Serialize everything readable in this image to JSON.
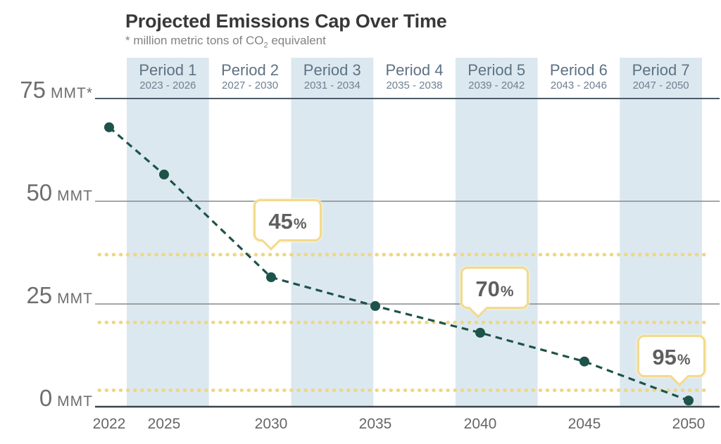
{
  "title": "Projected Emissions Cap Over Time",
  "subtitle": {
    "prefix": "* million metric tons of CO",
    "sub": "2",
    "suffix": " equivalent"
  },
  "colors": {
    "background": "#ffffff",
    "band": "#dce8ef",
    "grid": "#85898c",
    "axis_top": "#4d5c68",
    "axis_bottom": "#39434b",
    "line": "#1d5349",
    "target_dots": "#efd685",
    "callout_border": "#f3da8c",
    "callout_text": "#5f5f5f",
    "title_text": "#383838",
    "subtitle_text": "#828282",
    "period_text": "#5d7284",
    "axis_label_text": "#6e6e6e"
  },
  "chart_data": {
    "type": "line",
    "title": "Projected Emissions Cap Over Time",
    "subtitle": "* million metric tons of CO2 equivalent",
    "unit": "MMT CO2 equivalent",
    "x": [
      2022,
      2025,
      2030,
      2035,
      2040,
      2045,
      2050
    ],
    "values": [
      68,
      56.5,
      31.5,
      24.5,
      18,
      11,
      1.5
    ],
    "series_name": "Projected emissions cap",
    "line_style": "dashed",
    "marker": "circle",
    "ylim": [
      0,
      75
    ],
    "grid": "horizontal",
    "legend": "none",
    "y_ticks": [
      {
        "value": 75,
        "label": "75",
        "unit": "MMT*"
      },
      {
        "value": 50,
        "label": "50",
        "unit": "MMT"
      },
      {
        "value": 25,
        "label": "25",
        "unit": "MMT"
      },
      {
        "value": 0,
        "label": "0",
        "unit": "MMT"
      }
    ],
    "x_ticks": [
      "2022",
      "2025",
      "2030",
      "2035",
      "2040",
      "2045",
      "2050"
    ],
    "periods": [
      {
        "label": "Period 1",
        "dates": "2023 - 2026",
        "shaded": true
      },
      {
        "label": "Period 2",
        "dates": "2027 - 2030",
        "shaded": false
      },
      {
        "label": "Period 3",
        "dates": "2031 - 2034",
        "shaded": true
      },
      {
        "label": "Period 4",
        "dates": "2035 - 2038",
        "shaded": false
      },
      {
        "label": "Period 5",
        "dates": "2039 - 2042",
        "shaded": true
      },
      {
        "label": "Period 6",
        "dates": "2043 - 2046",
        "shaded": false
      },
      {
        "label": "Period 7",
        "dates": "2047 - 2050",
        "shaded": true
      }
    ],
    "target_lines": [
      {
        "label": "45%",
        "number": "45",
        "symbol": "%",
        "value": 37
      },
      {
        "label": "70%",
        "number": "70",
        "symbol": "%",
        "value": 20.5
      },
      {
        "label": "95%",
        "number": "95",
        "symbol": "%",
        "value": 4
      }
    ]
  }
}
